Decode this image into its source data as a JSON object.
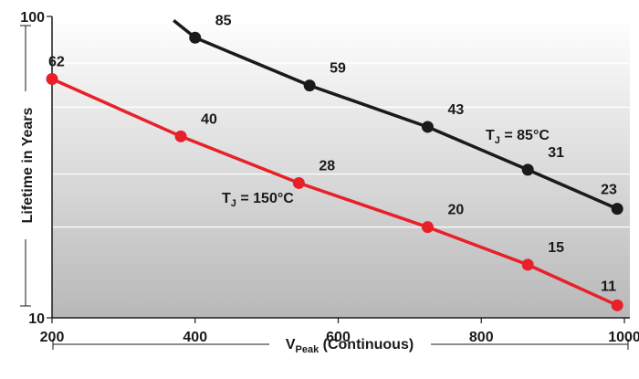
{
  "chart_data": {
    "type": "line",
    "y_scale": "log",
    "x": [
      200,
      400,
      600,
      800,
      1000
    ],
    "xlim": [
      200,
      1000
    ],
    "ylim": [
      10,
      100
    ],
    "x_ticks": [
      "200",
      "400",
      "600",
      "800",
      "1000"
    ],
    "y_ticks": [
      "10",
      "100"
    ],
    "xlabel": {
      "main": "V",
      "sub": "Peak",
      "rest": " (Continuous)"
    },
    "ylabel": "Lifetime in Years",
    "grid": "horizontal",
    "series": [
      {
        "name_main": "T",
        "name_sub": "J",
        "name_rest": " = 85°C",
        "color": "#1a1a1a",
        "start_point": [
          370,
          97
        ],
        "points": [
          [
            400,
            85,
            "85"
          ],
          [
            560,
            59,
            "59"
          ],
          [
            725,
            43,
            "43"
          ],
          [
            865,
            31,
            "31"
          ],
          [
            990,
            23,
            "23"
          ]
        ]
      },
      {
        "name_main": "T",
        "name_sub": "J",
        "name_rest": " = 150°C",
        "color": "#e8202a",
        "points": [
          [
            200,
            62,
            "62"
          ],
          [
            380,
            40,
            "40"
          ],
          [
            545,
            28,
            "28"
          ],
          [
            725,
            20,
            "20"
          ],
          [
            865,
            15,
            "15"
          ],
          [
            990,
            11,
            "11"
          ]
        ]
      }
    ]
  }
}
